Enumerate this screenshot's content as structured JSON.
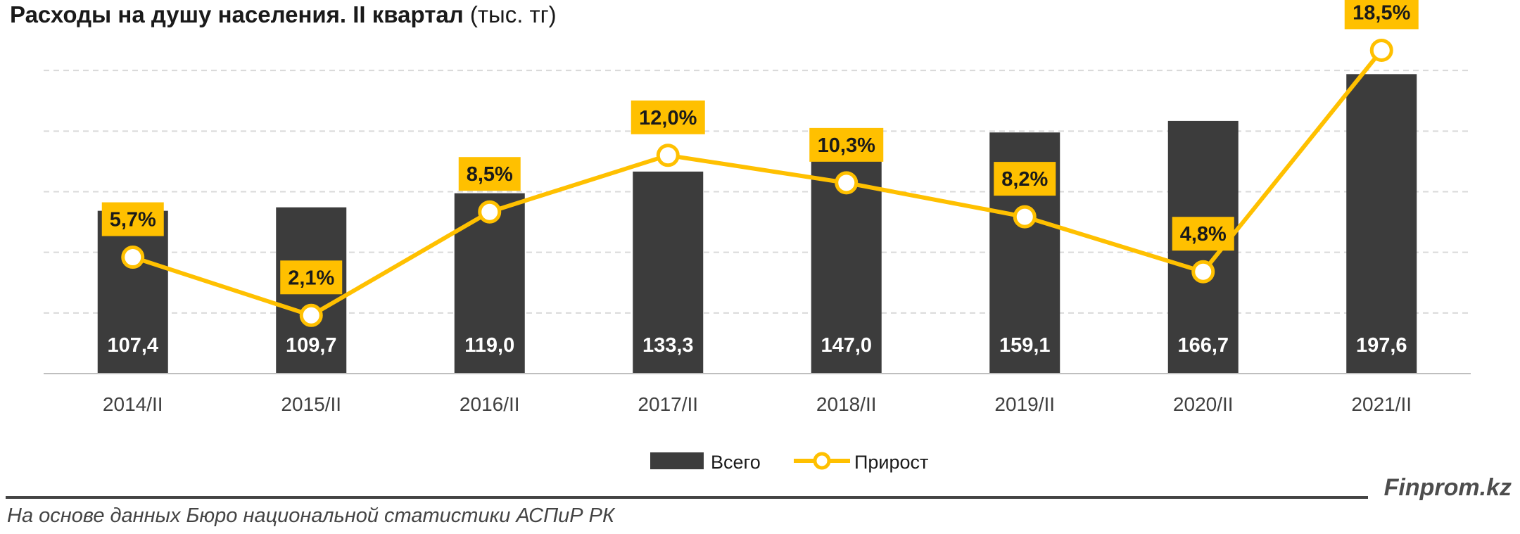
{
  "title": {
    "main": "Расходы на душу населения. II квартал",
    "unit": "(тыс. тг)"
  },
  "chart_data": {
    "type": "bar",
    "categories": [
      "2014/II",
      "2015/II",
      "2016/II",
      "2017/II",
      "2018/II",
      "2019/II",
      "2020/II",
      "2021/II"
    ],
    "series": [
      {
        "name": "Всего",
        "type": "bar",
        "color": "#3c3c3c",
        "values": [
          107.4,
          109.7,
          119.0,
          133.3,
          147.0,
          159.1,
          166.7,
          197.6
        ],
        "labels": [
          "107,4",
          "109,7",
          "119,0",
          "133,3",
          "147,0",
          "159,1",
          "166,7",
          "197,6"
        ]
      },
      {
        "name": "Прирост",
        "type": "line",
        "color": "#ffc000",
        "values": [
          5.7,
          2.1,
          8.5,
          12.0,
          10.3,
          8.2,
          4.8,
          18.5
        ],
        "labels": [
          "5,7%",
          "2,1%",
          "8,5%",
          "12,0%",
          "10,3%",
          "8,2%",
          "4,8%",
          "18,5%"
        ]
      }
    ],
    "ylim": [
      0,
      240
    ],
    "y2lim": [
      -1.5,
      21
    ],
    "grid": true,
    "legend": "bottom-center"
  },
  "footer": {
    "source": "На основе данных Бюро национальной статистики АСПиР РК",
    "brand": "Finprom.kz"
  }
}
